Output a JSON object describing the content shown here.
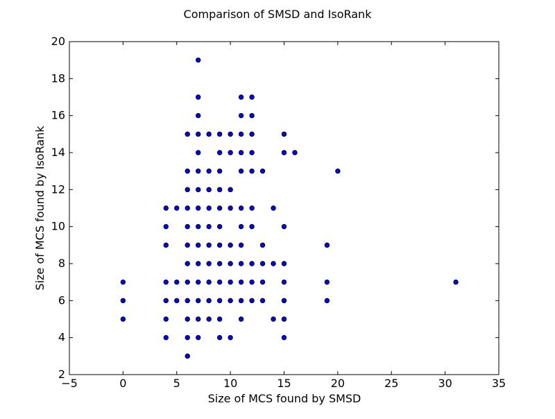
{
  "chart_data": {
    "type": "scatter",
    "title": "Comparison of SMSD and IsoRank",
    "xlabel": "Size of MCS found by SMSD",
    "ylabel": "Size of MCS found by IsoRank",
    "xlim": [
      -5,
      35
    ],
    "ylim": [
      2,
      20
    ],
    "xticks": [
      -5,
      0,
      5,
      10,
      15,
      20,
      25,
      30,
      35
    ],
    "yticks": [
      2,
      4,
      6,
      8,
      10,
      12,
      14,
      16,
      18,
      20
    ],
    "xtick_labels": [
      "−5",
      "0",
      "5",
      "10",
      "15",
      "20",
      "25",
      "30",
      "35"
    ],
    "ytick_labels": [
      "2",
      "4",
      "6",
      "8",
      "10",
      "12",
      "14",
      "16",
      "18",
      "20"
    ],
    "grid": false,
    "marker_color": "#0000ff",
    "marker_edge_color": "#000000",
    "points": [
      [
        0,
        5
      ],
      [
        0,
        6
      ],
      [
        0,
        7
      ],
      [
        4,
        4
      ],
      [
        4,
        5
      ],
      [
        4,
        6
      ],
      [
        4,
        7
      ],
      [
        4,
        9
      ],
      [
        4,
        10
      ],
      [
        4,
        11
      ],
      [
        5,
        6
      ],
      [
        5,
        7
      ],
      [
        5,
        11
      ],
      [
        6,
        3
      ],
      [
        6,
        4
      ],
      [
        6,
        5
      ],
      [
        6,
        6
      ],
      [
        6,
        7
      ],
      [
        6,
        8
      ],
      [
        6,
        9
      ],
      [
        6,
        10
      ],
      [
        6,
        11
      ],
      [
        6,
        12
      ],
      [
        6,
        13
      ],
      [
        6,
        15
      ],
      [
        7,
        4
      ],
      [
        7,
        5
      ],
      [
        7,
        6
      ],
      [
        7,
        7
      ],
      [
        7,
        8
      ],
      [
        7,
        9
      ],
      [
        7,
        10
      ],
      [
        7,
        11
      ],
      [
        7,
        12
      ],
      [
        7,
        13
      ],
      [
        7,
        14
      ],
      [
        7,
        15
      ],
      [
        7,
        16
      ],
      [
        7,
        17
      ],
      [
        7,
        19
      ],
      [
        8,
        5
      ],
      [
        8,
        6
      ],
      [
        8,
        7
      ],
      [
        8,
        8
      ],
      [
        8,
        9
      ],
      [
        8,
        10
      ],
      [
        8,
        11
      ],
      [
        8,
        12
      ],
      [
        8,
        13
      ],
      [
        8,
        15
      ],
      [
        9,
        4
      ],
      [
        9,
        5
      ],
      [
        9,
        6
      ],
      [
        9,
        7
      ],
      [
        9,
        8
      ],
      [
        9,
        9
      ],
      [
        9,
        10
      ],
      [
        9,
        11
      ],
      [
        9,
        12
      ],
      [
        9,
        13
      ],
      [
        9,
        14
      ],
      [
        9,
        15
      ],
      [
        10,
        4
      ],
      [
        10,
        6
      ],
      [
        10,
        7
      ],
      [
        10,
        8
      ],
      [
        10,
        9
      ],
      [
        10,
        11
      ],
      [
        10,
        12
      ],
      [
        10,
        14
      ],
      [
        10,
        15
      ],
      [
        11,
        5
      ],
      [
        11,
        6
      ],
      [
        11,
        7
      ],
      [
        11,
        8
      ],
      [
        11,
        9
      ],
      [
        11,
        10
      ],
      [
        11,
        11
      ],
      [
        11,
        13
      ],
      [
        11,
        14
      ],
      [
        11,
        15
      ],
      [
        11,
        16
      ],
      [
        11,
        17
      ],
      [
        12,
        6
      ],
      [
        12,
        7
      ],
      [
        12,
        8
      ],
      [
        12,
        10
      ],
      [
        12,
        11
      ],
      [
        12,
        13
      ],
      [
        12,
        14
      ],
      [
        12,
        15
      ],
      [
        12,
        16
      ],
      [
        12,
        17
      ],
      [
        13,
        6
      ],
      [
        13,
        7
      ],
      [
        13,
        8
      ],
      [
        13,
        9
      ],
      [
        13,
        13
      ],
      [
        14,
        5
      ],
      [
        14,
        8
      ],
      [
        14,
        11
      ],
      [
        15,
        4
      ],
      [
        15,
        5
      ],
      [
        15,
        6
      ],
      [
        15,
        7
      ],
      [
        15,
        8
      ],
      [
        15,
        10
      ],
      [
        15,
        14
      ],
      [
        15,
        15
      ],
      [
        16,
        14
      ],
      [
        19,
        6
      ],
      [
        19,
        7
      ],
      [
        19,
        9
      ],
      [
        20,
        13
      ],
      [
        31,
        7
      ]
    ]
  }
}
